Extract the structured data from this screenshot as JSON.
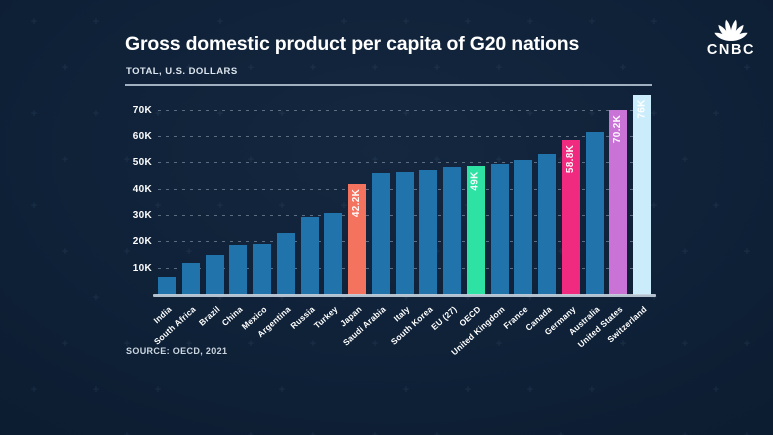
{
  "header": {
    "title": "Gross domestic product per capita of G20 nations",
    "subtitle": "TOTAL, U.S. DOLLARS",
    "source": "SOURCE: OECD, 2021"
  },
  "logo": {
    "wordmark": "CNBC",
    "icon": "cnbc-peacock-icon"
  },
  "colors": {
    "background": "#0e2036",
    "bar_default": "#2173ab",
    "highlight_japan": "#f4735f",
    "highlight_oecd": "#2ee2a3",
    "highlight_germany": "#f02a7e",
    "highlight_united_states": "#c973d6",
    "highlight_switzerland": "#cbedfb",
    "axis_text": "#ffffff",
    "gridline": "rgba(196,210,224,0.42)",
    "baseline": "#c5d2df"
  },
  "chart_data": {
    "type": "bar",
    "title": "Gross domestic product per capita of G20 nations",
    "subtitle": "TOTAL, U.S. DOLLARS",
    "xlabel": "",
    "ylabel": "U.S. dollars",
    "ylim_k": [
      0,
      79
    ],
    "grid": "dashed-horizontal",
    "legend": "none",
    "y_ticks": [
      {
        "v": 10,
        "label": "10K"
      },
      {
        "v": 20,
        "label": "20K"
      },
      {
        "v": 30,
        "label": "30K"
      },
      {
        "v": 40,
        "label": "40K"
      },
      {
        "v": 50,
        "label": "50K"
      },
      {
        "v": 60,
        "label": "60K"
      },
      {
        "v": 70,
        "label": "70K"
      }
    ],
    "categories": [
      "India",
      "South Africa",
      "Brazil",
      "China",
      "Mexico",
      "Argentina",
      "Russia",
      "Turkey",
      "Japan",
      "Saudi Arabia",
      "Italy",
      "South Korea",
      "EU (27)",
      "OECD",
      "United Kingdom",
      "France",
      "Canada",
      "Germany",
      "Australia",
      "United States",
      "Switzerland"
    ],
    "bars": [
      {
        "label": "India",
        "value_k": 6.9
      },
      {
        "label": "South Africa",
        "value_k": 12.3
      },
      {
        "label": "Brazil",
        "value_k": 15.2
      },
      {
        "label": "China",
        "value_k": 19.0
      },
      {
        "label": "Mexico",
        "value_k": 19.5
      },
      {
        "label": "Argentina",
        "value_k": 23.5
      },
      {
        "label": "Russia",
        "value_k": 29.8
      },
      {
        "label": "Turkey",
        "value_k": 31.0
      },
      {
        "label": "Japan",
        "value_k": 42.2,
        "color": "#f4735f",
        "value_label": "42.2K"
      },
      {
        "label": "Saudi Arabia",
        "value_k": 46.4
      },
      {
        "label": "Italy",
        "value_k": 46.9
      },
      {
        "label": "South Korea",
        "value_k": 47.3
      },
      {
        "label": "EU (27)",
        "value_k": 48.6
      },
      {
        "label": "OECD",
        "value_k": 49.0,
        "color": "#2ee2a3",
        "value_label": "49K"
      },
      {
        "label": "United Kingdom",
        "value_k": 49.7
      },
      {
        "label": "France",
        "value_k": 51.1
      },
      {
        "label": "Canada",
        "value_k": 53.5
      },
      {
        "label": "Germany",
        "value_k": 58.8,
        "color": "#f02a7e",
        "value_label": "58.8K"
      },
      {
        "label": "Australia",
        "value_k": 62.0
      },
      {
        "label": "United States",
        "value_k": 70.2,
        "color": "#c973d6",
        "value_label": "70.2K"
      },
      {
        "label": "Switzerland",
        "value_k": 76.0,
        "color": "#cbedfb",
        "value_label": "76K"
      }
    ]
  }
}
